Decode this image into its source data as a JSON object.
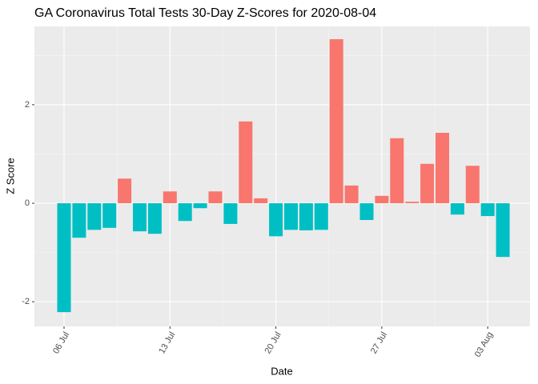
{
  "chart_data": {
    "type": "bar",
    "title": "GA Coronavirus Total Tests 30-Day Z-Scores for 2020-08-04",
    "x_label": "Date",
    "y_label": "Z Score",
    "categories": [
      "06 Jul",
      null,
      null,
      null,
      null,
      null,
      null,
      "13 Jul",
      null,
      null,
      null,
      null,
      null,
      null,
      "20 Jul",
      null,
      null,
      null,
      null,
      null,
      null,
      "27 Jul",
      null,
      null,
      null,
      null,
      null,
      null,
      "03 Aug",
      null
    ],
    "values": [
      -2.21,
      -0.7,
      -0.54,
      -0.5,
      0.5,
      -0.57,
      -0.62,
      0.24,
      -0.36,
      -0.1,
      0.24,
      -0.42,
      1.66,
      0.1,
      -0.67,
      -0.54,
      -0.55,
      -0.54,
      3.33,
      0.36,
      -0.34,
      0.15,
      1.32,
      0.03,
      0.8,
      1.43,
      -0.23,
      0.76,
      -0.26,
      -1.09
    ],
    "positive_color": "#F8766D",
    "negative_color": "#00BFC4",
    "ylim": [
      -2.5,
      3.59
    ],
    "yticks": [
      -2,
      0,
      2
    ],
    "grid": true
  }
}
